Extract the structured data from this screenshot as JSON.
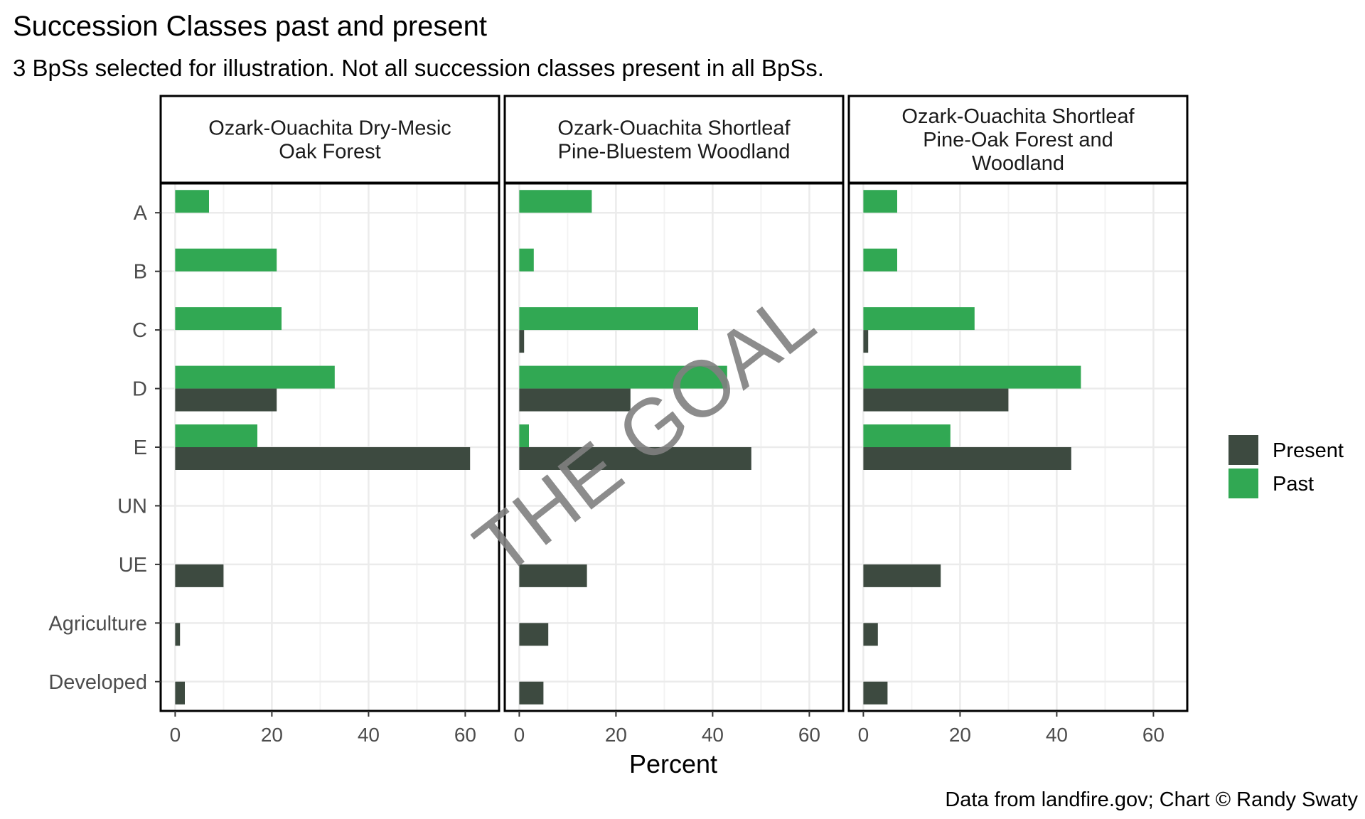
{
  "chart_data": {
    "type": "bar",
    "title": "Succession Classes past and present",
    "subtitle": "3 BpSs selected for illustration. Not all succession classes present in all BpSs.",
    "xlabel": "Percent",
    "ylabel": "",
    "caption": "Data from landfire.gov; Chart © Randy Swaty",
    "watermark": "THE GOAL",
    "orientation": "horizontal",
    "xlim": [
      -3,
      67
    ],
    "x_ticks": [
      0,
      20,
      40,
      60
    ],
    "grid": true,
    "legend_position": "right",
    "categories": [
      "A",
      "B",
      "C",
      "D",
      "E",
      "UN",
      "UE",
      "Agriculture",
      "Developed"
    ],
    "series": [
      {
        "name": "Present",
        "color": "#3d4a40"
      },
      {
        "name": "Past",
        "color": "#31a853"
      }
    ],
    "panels": [
      {
        "title_lines": [
          "Ozark-Ouachita Dry-Mesic",
          "Oak Forest"
        ],
        "present": [
          null,
          null,
          null,
          21,
          61,
          null,
          10,
          1,
          2
        ],
        "past": [
          7,
          21,
          22,
          33,
          17,
          null,
          null,
          null,
          null
        ]
      },
      {
        "title_lines": [
          "Ozark-Ouachita Shortleaf",
          "Pine-Bluestem Woodland"
        ],
        "present": [
          null,
          null,
          1,
          23,
          48,
          null,
          14,
          6,
          5
        ],
        "past": [
          15,
          3,
          37,
          43,
          2,
          null,
          null,
          null,
          null
        ]
      },
      {
        "title_lines": [
          "Ozark-Ouachita Shortleaf",
          "Pine-Oak Forest and",
          "Woodland"
        ],
        "present": [
          null,
          null,
          1,
          30,
          43,
          null,
          16,
          3,
          5
        ],
        "past": [
          7,
          7,
          23,
          45,
          18,
          null,
          null,
          null,
          null
        ]
      }
    ]
  },
  "colors": {
    "grid": "#ebebeb",
    "axis_text": "#4d4d4d",
    "frame": "#000000",
    "watermark": "#808080"
  }
}
